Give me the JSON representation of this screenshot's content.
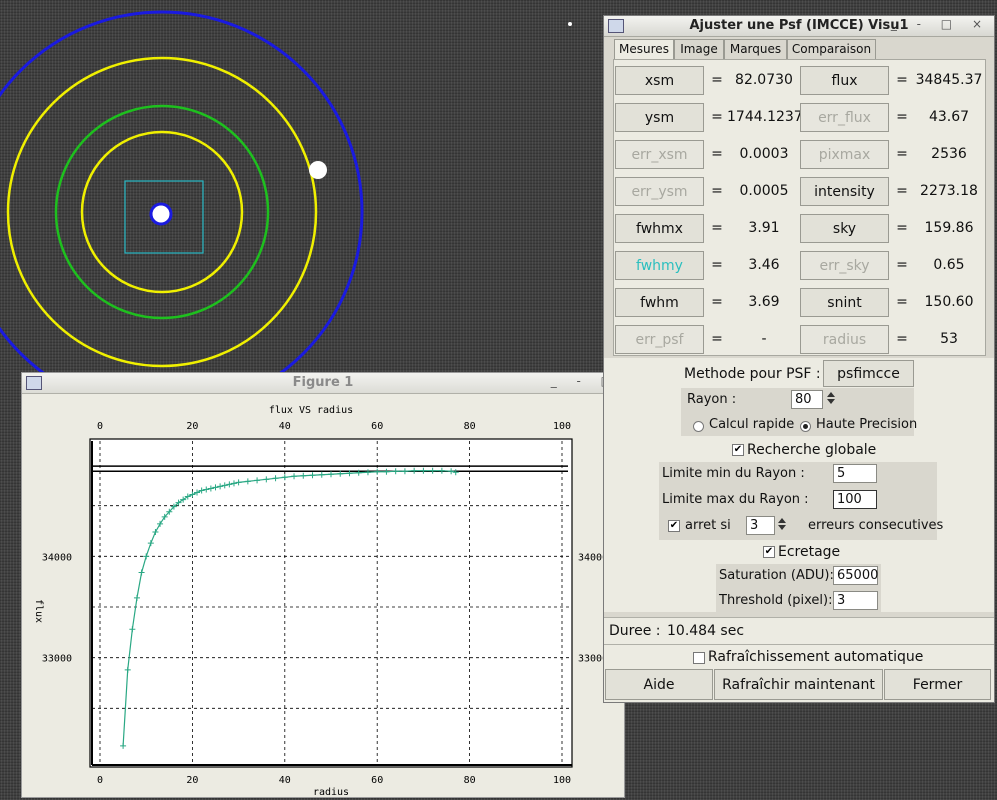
{
  "psf_window": {
    "title": "Ajuster une Psf (IMCCE) Visu1",
    "controls": "_ - □ ×",
    "tabs": [
      "Mesures",
      "Image",
      "Marques",
      "Comparaison"
    ],
    "measures": [
      {
        "left": {
          "name": "xsm",
          "value": "82.0730",
          "state": "normal"
        },
        "right": {
          "name": "flux",
          "value": "34845.37",
          "state": "normal"
        }
      },
      {
        "left": {
          "name": "ysm",
          "value": "1744.1237",
          "state": "normal"
        },
        "right": {
          "name": "err_flux",
          "value": "43.67",
          "state": "dim"
        }
      },
      {
        "left": {
          "name": "err_xsm",
          "value": "0.0003",
          "state": "dim"
        },
        "right": {
          "name": "pixmax",
          "value": "2536",
          "state": "dim"
        }
      },
      {
        "left": {
          "name": "err_ysm",
          "value": "0.0005",
          "state": "dim"
        },
        "right": {
          "name": "intensity",
          "value": "2273.18",
          "state": "normal"
        }
      },
      {
        "left": {
          "name": "fwhmx",
          "value": "3.91",
          "state": "normal"
        },
        "right": {
          "name": "sky",
          "value": "159.86",
          "state": "normal"
        }
      },
      {
        "left": {
          "name": "fwhmy",
          "value": "3.46",
          "state": "cyan"
        },
        "right": {
          "name": "err_sky",
          "value": "0.65",
          "state": "dim"
        }
      },
      {
        "left": {
          "name": "fwhm",
          "value": "3.69",
          "state": "normal"
        },
        "right": {
          "name": "snint",
          "value": "150.60",
          "state": "normal"
        }
      },
      {
        "left": {
          "name": "err_psf",
          "value": "-",
          "state": "dim"
        },
        "right": {
          "name": "radius",
          "value": "53",
          "state": "dim"
        }
      }
    ],
    "equals": "=",
    "method_label": "Methode pour PSF :",
    "method_value": "psfimcce",
    "rayon_label": "Rayon :",
    "rayon_value": "80",
    "radio_calcul": "Calcul rapide",
    "radio_haute": "Haute Precision",
    "recherche_globale": "Recherche globale",
    "limite_min_label": "Limite min du Rayon :",
    "limite_min_value": "5",
    "limite_max_label": "Limite max du Rayon :",
    "limite_max_value": "100",
    "arret_label": "arret si",
    "arret_value": "3",
    "erreurs_label": "erreurs consecutives",
    "ecretage_label": "Ecretage",
    "saturation_label": "Saturation (ADU):",
    "saturation_value": "65000",
    "threshold_label": "Threshold (pixel):",
    "threshold_value": "3",
    "duree_label": "Duree :",
    "duree_value": "10.484 sec",
    "refresh_auto": "Rafraîchissement automatique",
    "btn_aide": "Aide",
    "btn_refresh": "Rafraîchir maintenant",
    "btn_fermer": "Fermer",
    "checkmark": "✔"
  },
  "figure_window": {
    "title": "Figure 1",
    "controls": "_ - □"
  },
  "colors": {
    "curve": "#2aa884",
    "aperture_blue": "#1a1ae0",
    "aperture_yellow": "#f0f000",
    "aperture_green": "#1ec01e",
    "box_cyan": "#27b8c4"
  },
  "chart_data": {
    "type": "line",
    "title": "flux VS radius",
    "xlabel": "radius",
    "ylabel": "flux",
    "xlim": [
      0,
      100
    ],
    "ylim": [
      32000,
      35000
    ],
    "xticks": [
      0,
      20,
      40,
      60,
      80,
      100
    ],
    "yticks": [
      33000,
      34000
    ],
    "grid": true,
    "hlines": [
      34840,
      34890
    ],
    "series": [
      {
        "x": [
          5,
          6,
          7,
          8,
          9,
          10,
          11,
          12,
          13,
          14,
          15,
          16,
          17,
          18,
          19,
          20,
          21,
          22,
          23,
          24,
          25,
          26,
          27,
          28,
          29,
          30,
          32,
          34,
          36,
          38,
          40,
          42,
          44,
          46,
          48,
          50,
          52,
          54,
          56,
          58,
          60,
          62,
          64,
          66,
          68,
          70,
          72,
          74,
          76,
          77
        ],
        "y": [
          32130,
          32880,
          33280,
          33590,
          33840,
          34000,
          34130,
          34240,
          34320,
          34390,
          34440,
          34490,
          34530,
          34560,
          34590,
          34610,
          34630,
          34650,
          34660,
          34670,
          34680,
          34690,
          34700,
          34710,
          34720,
          34730,
          34740,
          34750,
          34760,
          34770,
          34780,
          34790,
          34795,
          34800,
          34805,
          34810,
          34815,
          34820,
          34825,
          34830,
          34835,
          34835,
          34840,
          34840,
          34845,
          34845,
          34845,
          34845,
          34840,
          34830
        ]
      }
    ]
  }
}
